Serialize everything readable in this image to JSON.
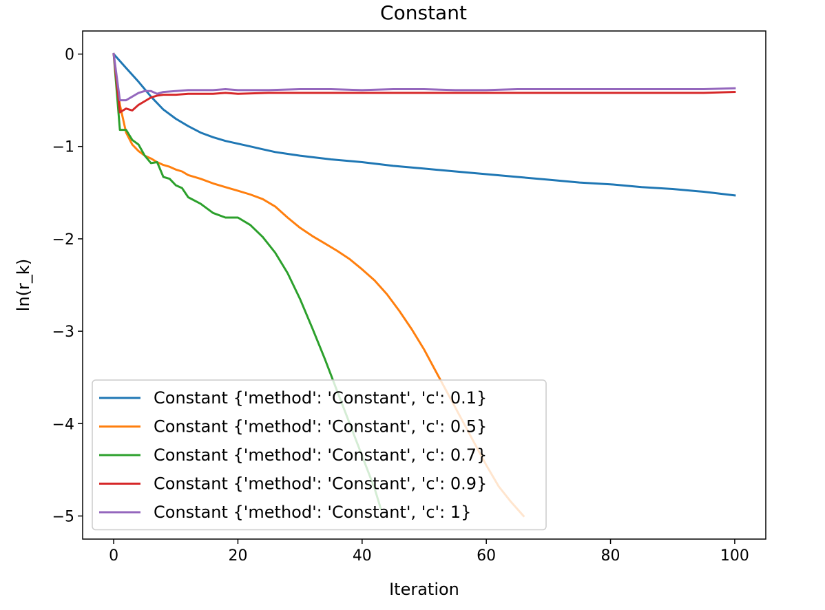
{
  "chart_data": {
    "type": "line",
    "title": "Constant",
    "xlabel": "Iteration",
    "ylabel": "ln(r_k)",
    "xlim": [
      -5,
      105
    ],
    "ylim": [
      -5.25,
      0.25
    ],
    "xticks": [
      0,
      20,
      40,
      60,
      80,
      100
    ],
    "yticks": [
      0,
      -1,
      -2,
      -3,
      -4,
      -5
    ],
    "grid": false,
    "legend_position": "lower-left",
    "series": [
      {
        "name": "Constant {'method': 'Constant', 'c': 0.1}",
        "color": "#1f77b4",
        "x": [
          0,
          2,
          4,
          6,
          8,
          10,
          12,
          14,
          16,
          18,
          20,
          22,
          24,
          26,
          28,
          30,
          35,
          40,
          45,
          50,
          55,
          60,
          65,
          70,
          75,
          80,
          85,
          90,
          95,
          100
        ],
        "y": [
          0,
          -0.15,
          -0.3,
          -0.46,
          -0.6,
          -0.7,
          -0.78,
          -0.85,
          -0.9,
          -0.94,
          -0.97,
          -1.0,
          -1.03,
          -1.06,
          -1.08,
          -1.1,
          -1.14,
          -1.17,
          -1.21,
          -1.24,
          -1.27,
          -1.3,
          -1.33,
          -1.36,
          -1.39,
          -1.41,
          -1.44,
          -1.46,
          -1.49,
          -1.53
        ]
      },
      {
        "name": "Constant {'method': 'Constant', 'c': 0.5}",
        "color": "#ff7f0e",
        "x": [
          0,
          1,
          2,
          3,
          4,
          5,
          6,
          7,
          8,
          9,
          10,
          11,
          12,
          14,
          16,
          18,
          20,
          22,
          24,
          26,
          28,
          30,
          32,
          34,
          36,
          38,
          40,
          42,
          44,
          46,
          48,
          50,
          52,
          54,
          56,
          58,
          60,
          62,
          64,
          66
        ],
        "y": [
          0,
          -0.55,
          -0.85,
          -0.98,
          -1.05,
          -1.1,
          -1.13,
          -1.17,
          -1.2,
          -1.22,
          -1.25,
          -1.27,
          -1.31,
          -1.35,
          -1.4,
          -1.44,
          -1.48,
          -1.52,
          -1.57,
          -1.65,
          -1.77,
          -1.88,
          -1.97,
          -2.05,
          -2.13,
          -2.22,
          -2.33,
          -2.45,
          -2.6,
          -2.78,
          -2.98,
          -3.2,
          -3.45,
          -3.7,
          -3.95,
          -4.2,
          -4.45,
          -4.68,
          -4.85,
          -5.0
        ]
      },
      {
        "name": "Constant {'method': 'Constant', 'c': 0.7}",
        "color": "#2ca02c",
        "x": [
          0,
          1,
          2,
          3,
          4,
          5,
          6,
          7,
          8,
          9,
          10,
          11,
          12,
          14,
          16,
          18,
          20,
          22,
          24,
          26,
          28,
          30,
          32,
          34,
          36,
          38,
          40,
          42,
          43
        ],
        "y": [
          0,
          -0.82,
          -0.82,
          -0.93,
          -0.98,
          -1.1,
          -1.18,
          -1.17,
          -1.33,
          -1.35,
          -1.42,
          -1.45,
          -1.55,
          -1.62,
          -1.72,
          -1.77,
          -1.77,
          -1.85,
          -1.98,
          -2.15,
          -2.37,
          -2.65,
          -2.97,
          -3.3,
          -3.65,
          -4.0,
          -4.35,
          -4.7,
          -4.92
        ]
      },
      {
        "name": "Constant {'method': 'Constant', 'c': 0.9}",
        "color": "#d62728",
        "x": [
          0,
          1,
          2,
          3,
          4,
          5,
          6,
          7,
          8,
          10,
          12,
          14,
          16,
          18,
          20,
          25,
          30,
          35,
          40,
          45,
          50,
          55,
          60,
          65,
          70,
          75,
          80,
          85,
          90,
          95,
          100
        ],
        "y": [
          0,
          -0.63,
          -0.59,
          -0.61,
          -0.55,
          -0.51,
          -0.47,
          -0.45,
          -0.44,
          -0.44,
          -0.43,
          -0.43,
          -0.43,
          -0.42,
          -0.43,
          -0.42,
          -0.42,
          -0.42,
          -0.42,
          -0.42,
          -0.42,
          -0.42,
          -0.42,
          -0.42,
          -0.42,
          -0.42,
          -0.42,
          -0.42,
          -0.42,
          -0.42,
          -0.41
        ]
      },
      {
        "name": "Constant {'method': 'Constant', 'c': 1}",
        "color": "#9467bd",
        "x": [
          0,
          1,
          2,
          3,
          4,
          5,
          6,
          7,
          8,
          10,
          12,
          14,
          16,
          18,
          20,
          25,
          30,
          35,
          40,
          45,
          50,
          55,
          60,
          65,
          70,
          75,
          80,
          85,
          90,
          95,
          100
        ],
        "y": [
          0,
          -0.5,
          -0.5,
          -0.46,
          -0.42,
          -0.4,
          -0.4,
          -0.43,
          -0.41,
          -0.4,
          -0.39,
          -0.39,
          -0.39,
          -0.38,
          -0.39,
          -0.39,
          -0.38,
          -0.38,
          -0.39,
          -0.38,
          -0.38,
          -0.39,
          -0.39,
          -0.38,
          -0.38,
          -0.38,
          -0.38,
          -0.38,
          -0.38,
          -0.38,
          -0.37
        ]
      }
    ]
  }
}
